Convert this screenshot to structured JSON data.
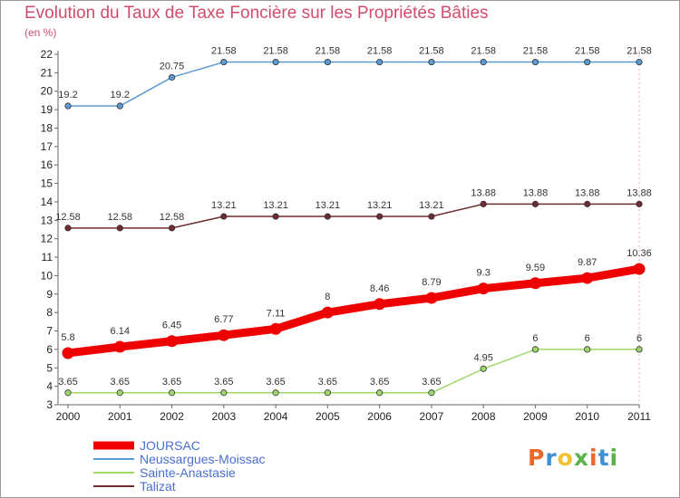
{
  "header": {
    "title": "Evolution du Taux de Taxe Foncière sur les Propriétés Bâties",
    "unit": "(en %)"
  },
  "logo": {
    "text": "Proxiti",
    "colors": [
      "#e8692a",
      "#3f8fd2",
      "#f2c12e",
      "#5bb44a",
      "#e8692a",
      "#3f8fd2",
      "#5bb44a"
    ]
  },
  "chart_data": {
    "type": "line",
    "title": "Evolution du Taux de Taxe Foncière sur les Propriétés Bâties",
    "ylabel": "(en %)",
    "xlabel": "",
    "x": [
      "2000",
      "2001",
      "2002",
      "2003",
      "2004",
      "2005",
      "2006",
      "2007",
      "2008",
      "2009",
      "2010",
      "2011"
    ],
    "ylim": [
      3,
      22
    ],
    "yticks": [
      3,
      4,
      5,
      6,
      7,
      8,
      9,
      10,
      11,
      12,
      13,
      14,
      15,
      16,
      17,
      18,
      19,
      20,
      21,
      22
    ],
    "grid": false,
    "legend": "bottom-left",
    "series": [
      {
        "name": "JOURSAC",
        "color": "#ee0000",
        "emphasis": true,
        "values": [
          5.8,
          6.14,
          6.45,
          6.77,
          7.11,
          8,
          8.46,
          8.79,
          9.3,
          9.59,
          9.87,
          10.36
        ],
        "labels": [
          "5.8",
          "6.14",
          "6.45",
          "6.77",
          "7.11",
          "8",
          "8.46",
          "8.79",
          "9.3",
          "9.59",
          "9.87",
          "10.36"
        ]
      },
      {
        "name": "Neussargues-Moissac",
        "color": "#5b9bd1",
        "emphasis": false,
        "values": [
          19.2,
          19.2,
          20.75,
          21.58,
          21.58,
          21.58,
          21.58,
          21.58,
          21.58,
          21.58,
          21.58,
          21.58
        ],
        "labels": [
          "19.2",
          "19.2",
          "20.75",
          "21.58",
          "21.58",
          "21.58",
          "21.58",
          "21.58",
          "21.58",
          "21.58",
          "21.58",
          "21.58"
        ]
      },
      {
        "name": "Sainte-Anastasie",
        "color": "#9ed86a",
        "emphasis": false,
        "values": [
          3.65,
          3.65,
          3.65,
          3.65,
          3.65,
          3.65,
          3.65,
          3.65,
          4.95,
          6,
          6,
          6
        ],
        "labels": [
          "3.65",
          "3.65",
          "3.65",
          "3.65",
          "3.65",
          "3.65",
          "3.65",
          "3.65",
          "4.95",
          "6",
          "6",
          "6"
        ]
      },
      {
        "name": "Talizat",
        "color": "#6e2b30",
        "emphasis": false,
        "values": [
          12.58,
          12.58,
          12.58,
          13.21,
          13.21,
          13.21,
          13.21,
          13.21,
          13.88,
          13.88,
          13.88,
          13.88
        ],
        "labels": [
          "12.58",
          "12.58",
          "12.58",
          "13.21",
          "13.21",
          "13.21",
          "13.21",
          "13.21",
          "13.88",
          "13.88",
          "13.88",
          "13.88"
        ]
      }
    ]
  }
}
